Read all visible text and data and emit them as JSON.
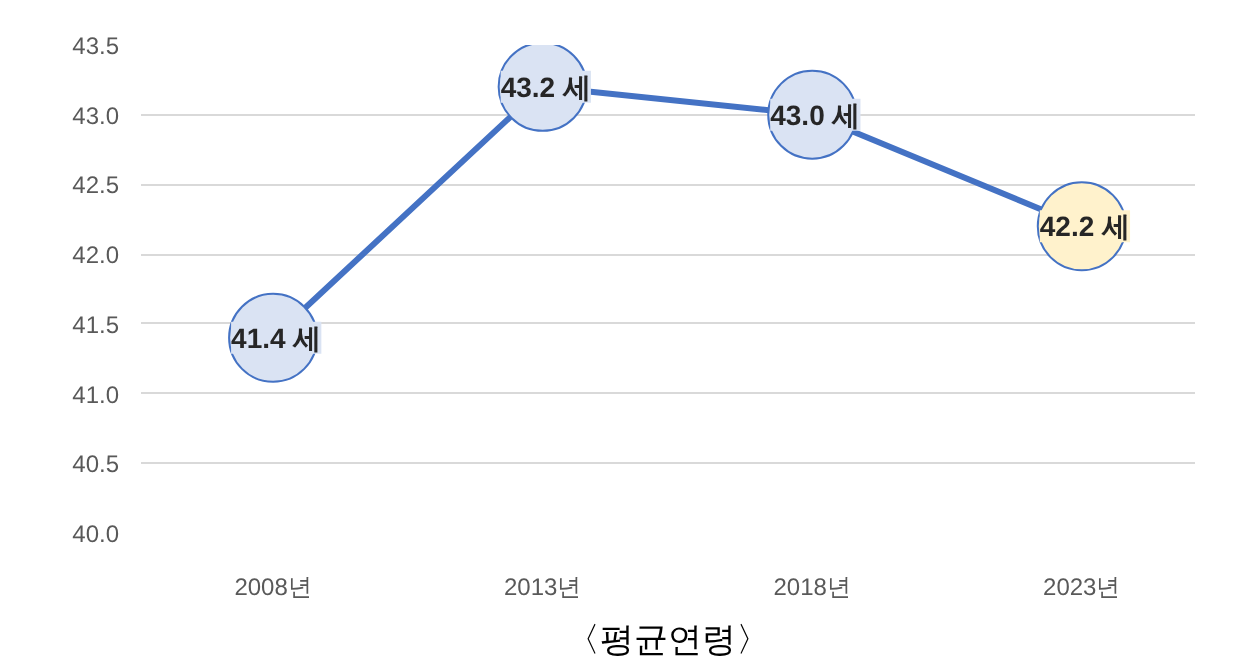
{
  "chart_data": {
    "type": "line",
    "title": "〈평균연령〉",
    "categories": [
      "2008년",
      "2013년",
      "2018년",
      "2023년"
    ],
    "series": [
      {
        "color": "#4472c4",
        "values": [
          41.4,
          43.2,
          43.0,
          42.2
        ],
        "colors": [
          "#dae3f3",
          "#dae3f3",
          "#dae3f3",
          "#fff2cc"
        ],
        "value_labels": [
          "41.4 세",
          "43.2 세",
          "43.0 세",
          "42.2 세"
        ]
      }
    ],
    "ylim": [
      40.0,
      43.5
    ],
    "yticks": [
      {
        "value": 40,
        "label": "40.0"
      },
      {
        "value": 40.5,
        "label": "40.5"
      },
      {
        "value": 41,
        "label": "41.0"
      },
      {
        "value": 41.5,
        "label": "41.5"
      },
      {
        "value": 42,
        "label": "42.0"
      },
      {
        "value": 42.5,
        "label": "42.5"
      },
      {
        "value": 43,
        "label": "43.0"
      },
      {
        "value": 43.5,
        "label": "43.5"
      }
    ],
    "grid": "y",
    "marker": "circle"
  }
}
